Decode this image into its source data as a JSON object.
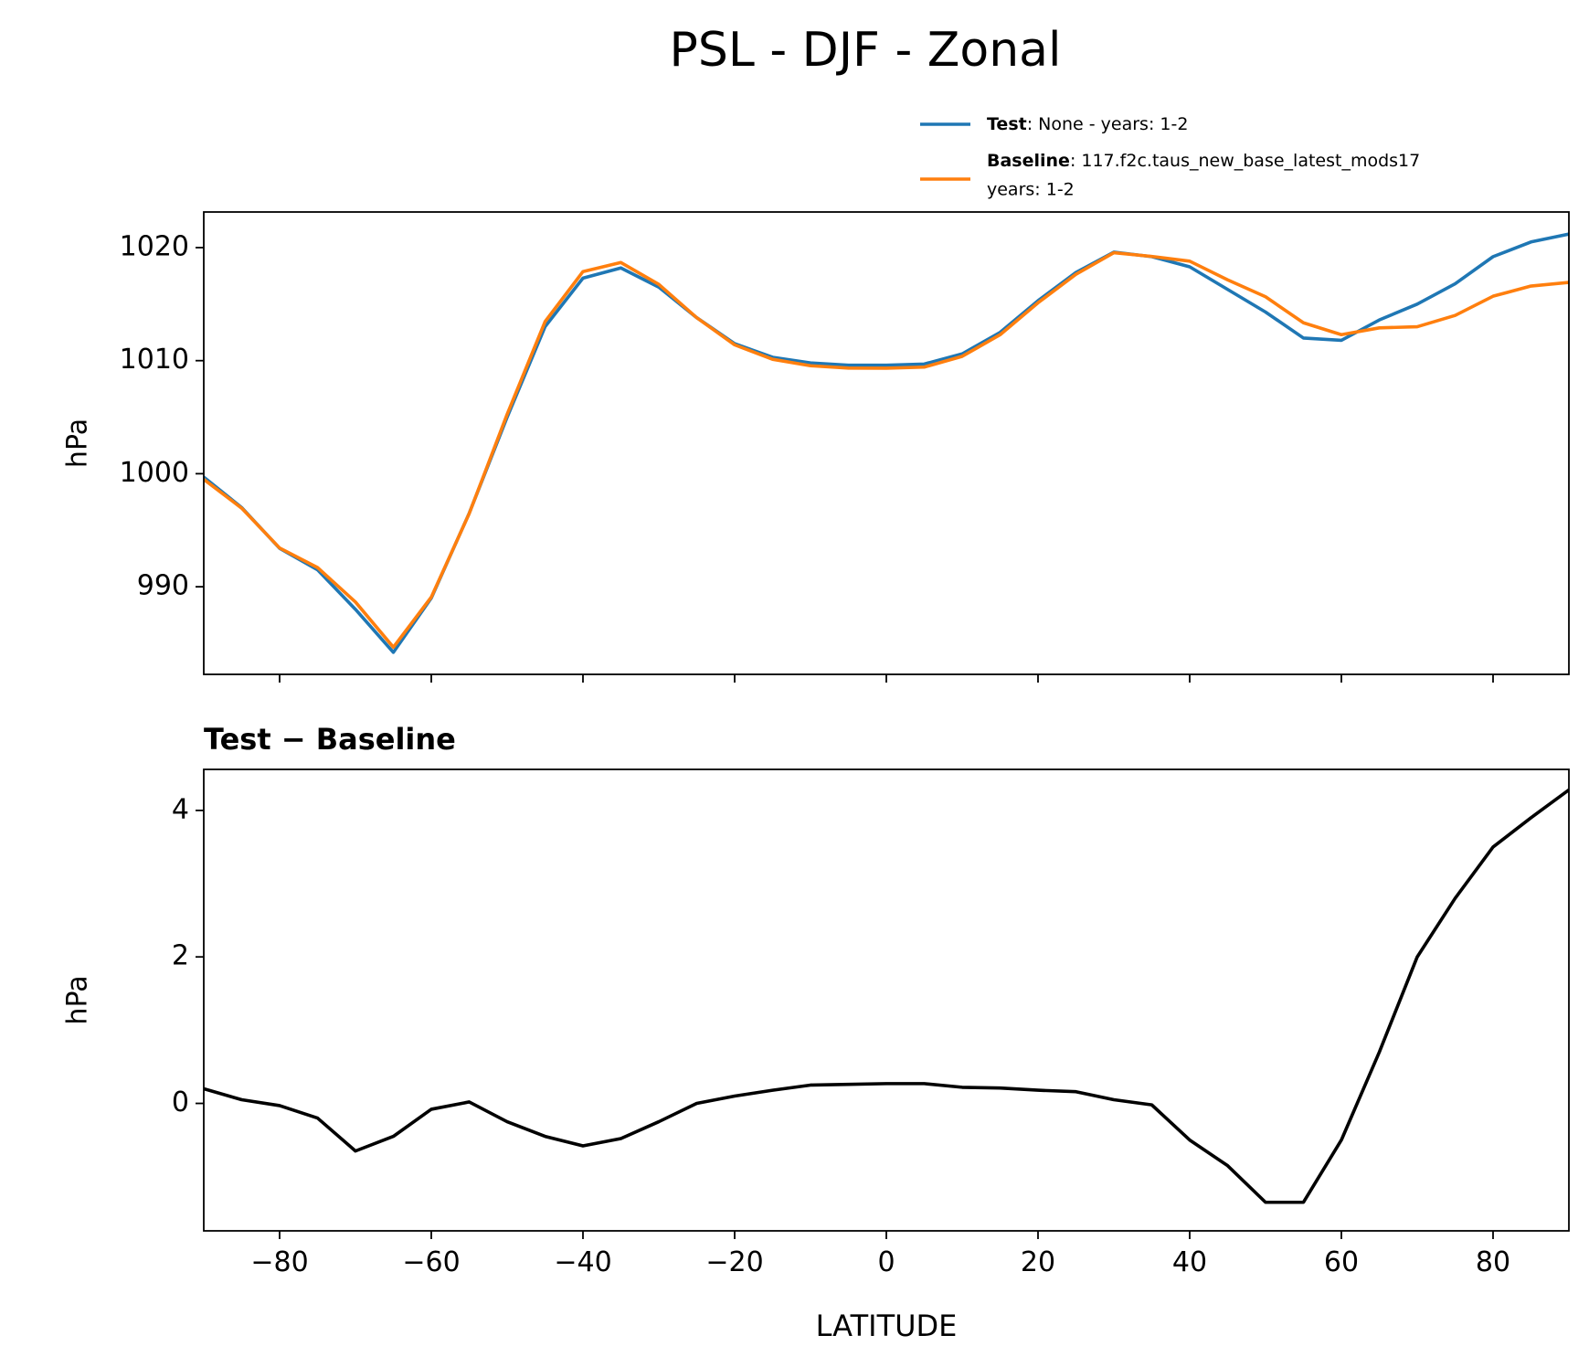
{
  "title": "PSL - DJF - Zonal",
  "chart_data": [
    {
      "type": "line",
      "xlim": [
        -90,
        90
      ],
      "xticks": [
        -80,
        -60,
        -40,
        -20,
        0,
        20,
        40,
        60,
        80
      ],
      "show_xticklabels": false,
      "ylabel": "hPa",
      "ylim": [
        982.25,
        1023.15
      ],
      "yticks": [
        990,
        1000,
        1010,
        1020
      ],
      "x": [
        -90,
        -85,
        -80,
        -75,
        -70,
        -65,
        -60,
        -55,
        -50,
        -45,
        -40,
        -35,
        -30,
        -25,
        -20,
        -15,
        -10,
        -5,
        0,
        5,
        10,
        15,
        20,
        25,
        30,
        35,
        40,
        45,
        50,
        55,
        60,
        65,
        70,
        75,
        80,
        85,
        90
      ],
      "series": [
        {
          "name": "Test",
          "detail": [
            ": None - years: 1-2"
          ],
          "color": "#1f77b4",
          "values": [
            999.7,
            997,
            993.4,
            991.5,
            988,
            984.2,
            989,
            996.5,
            1005,
            1013,
            1017.3,
            1018.2,
            1016.5,
            1013.8,
            1011.5,
            1010.3,
            1009.8,
            1009.6,
            1009.6,
            1009.7,
            1010.6,
            1012.5,
            1015.3,
            1017.8,
            1019.6,
            1019.2,
            1018.3,
            1016.3,
            1014.3,
            1012,
            1011.8,
            1013.6,
            1015,
            1016.8,
            1019.2,
            1020.5,
            1021.2
          ]
        },
        {
          "name": "Baseline",
          "detail": [
            ": 117.f2c.taus_new_base_latest_mods17",
            "years: 1-2"
          ],
          "color": "#ff7f0e",
          "values": [
            999.5,
            996.95,
            993.43,
            991.7,
            988.65,
            984.65,
            989.08,
            996.48,
            1005.25,
            1013.45,
            1017.88,
            1018.68,
            1016.75,
            1013.8,
            1011.4,
            1010.12,
            1009.55,
            1009.34,
            1009.33,
            1009.43,
            1010.38,
            1012.29,
            1015.12,
            1017.64,
            1019.55,
            1019.22,
            1018.8,
            1017.15,
            1015.65,
            1013.35,
            1012.3,
            1012.9,
            1013,
            1014,
            1015.7,
            1016.6,
            1016.92
          ]
        }
      ]
    },
    {
      "type": "line",
      "title": "Test − Baseline",
      "xlabel": "LATITUDE",
      "xlim": [
        -90,
        90
      ],
      "xticks": [
        {
          "value": -80,
          "label": "−80"
        },
        {
          "value": -60,
          "label": "−60"
        },
        {
          "value": -40,
          "label": "−40"
        },
        {
          "value": -20,
          "label": "−20"
        },
        0,
        20,
        40,
        60,
        80
      ],
      "show_xticklabels": true,
      "ylabel": "hPa",
      "ylim": [
        -1.74,
        4.56
      ],
      "yticks": [
        0,
        2,
        4
      ],
      "x": [
        -90,
        -85,
        -80,
        -75,
        -70,
        -65,
        -60,
        -55,
        -50,
        -45,
        -40,
        -35,
        -30,
        -25,
        -20,
        -15,
        -10,
        -5,
        0,
        5,
        10,
        15,
        20,
        25,
        30,
        35,
        40,
        45,
        50,
        55,
        60,
        65,
        70,
        75,
        80,
        85,
        90
      ],
      "series": [
        {
          "color": "#000000",
          "values": [
            0.2,
            0.05,
            -0.03,
            -0.2,
            -0.65,
            -0.45,
            -0.08,
            0.02,
            -0.25,
            -0.45,
            -0.58,
            -0.48,
            -0.25,
            0,
            0.1,
            0.18,
            0.25,
            0.26,
            0.27,
            0.27,
            0.22,
            0.21,
            0.18,
            0.16,
            0.05,
            -0.02,
            -0.5,
            -0.85,
            -1.35,
            -1.35,
            -0.5,
            0.7,
            2,
            2.8,
            3.5,
            3.9,
            4.28
          ]
        }
      ]
    }
  ]
}
